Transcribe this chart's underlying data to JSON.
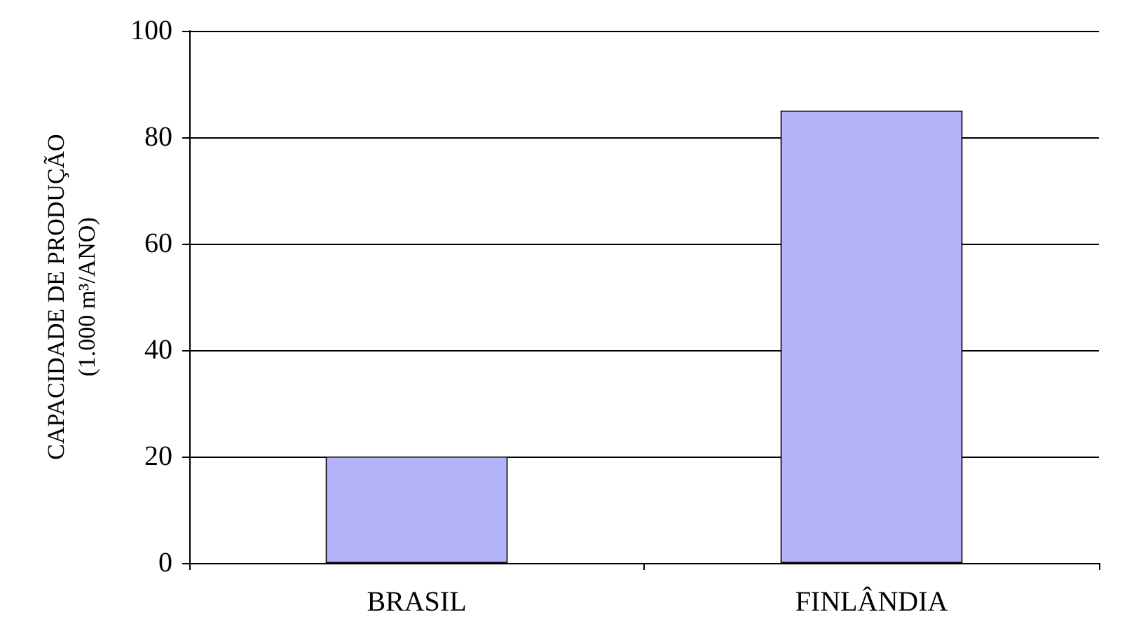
{
  "chart_data": {
    "type": "bar",
    "ylabel": "CAPACIDADE DE PRODUÇÃO\n(1.000 m³/ANO)",
    "categories": [
      "BRASIL",
      "FINLÂNDIA"
    ],
    "values": [
      20,
      85
    ],
    "color": "#b4b4fa",
    "ylim": [
      0,
      100
    ],
    "yticks": [
      0,
      20,
      40,
      60,
      80,
      100
    ],
    "grid": "y"
  }
}
